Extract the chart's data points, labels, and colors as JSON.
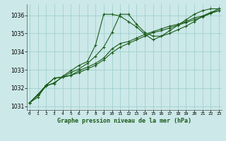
{
  "title": "Graphe pression niveau de la mer (hPa)",
  "bg_color": "#cce8e8",
  "grid_color": "#99cccc",
  "line_color": "#1a5c1a",
  "ylim": [
    1030.8,
    1036.6
  ],
  "yticks": [
    1031,
    1032,
    1033,
    1034,
    1035,
    1036
  ],
  "xlim": [
    -0.3,
    23.3
  ],
  "x_ticks": [
    0,
    1,
    2,
    3,
    4,
    5,
    6,
    7,
    8,
    9,
    10,
    11,
    12,
    13,
    14,
    15,
    16,
    17,
    18,
    19,
    20,
    21,
    22,
    23
  ],
  "series": [
    [
      1031.2,
      1031.6,
      1032.1,
      1032.3,
      1032.6,
      1032.85,
      1033.05,
      1033.35,
      1033.75,
      1034.25,
      1035.05,
      1036.05,
      1036.05,
      1035.5,
      1035.05,
      1034.85,
      1034.85,
      1035.0,
      1035.2,
      1035.4,
      1035.65,
      1035.95,
      1036.15,
      1036.25
    ],
    [
      1031.2,
      1031.65,
      1032.15,
      1032.55,
      1032.6,
      1032.7,
      1032.85,
      1033.05,
      1033.25,
      1033.55,
      1033.95,
      1034.25,
      1034.45,
      1034.65,
      1034.85,
      1035.05,
      1035.15,
      1035.3,
      1035.45,
      1035.6,
      1035.75,
      1035.9,
      1036.1,
      1036.25
    ],
    [
      1031.2,
      1031.65,
      1032.15,
      1032.55,
      1032.6,
      1032.7,
      1032.95,
      1033.15,
      1033.35,
      1033.65,
      1034.15,
      1034.45,
      1034.55,
      1034.75,
      1034.95,
      1035.1,
      1035.25,
      1035.4,
      1035.5,
      1035.65,
      1035.85,
      1035.95,
      1036.15,
      1036.35
    ],
    [
      1031.2,
      1031.5,
      1032.15,
      1032.25,
      1032.65,
      1032.95,
      1033.25,
      1033.45,
      1034.35,
      1036.05,
      1036.05,
      1035.95,
      1035.65,
      1035.35,
      1034.95,
      1034.65,
      1034.85,
      1035.15,
      1035.45,
      1035.75,
      1036.05,
      1036.25,
      1036.35,
      1036.35
    ]
  ]
}
